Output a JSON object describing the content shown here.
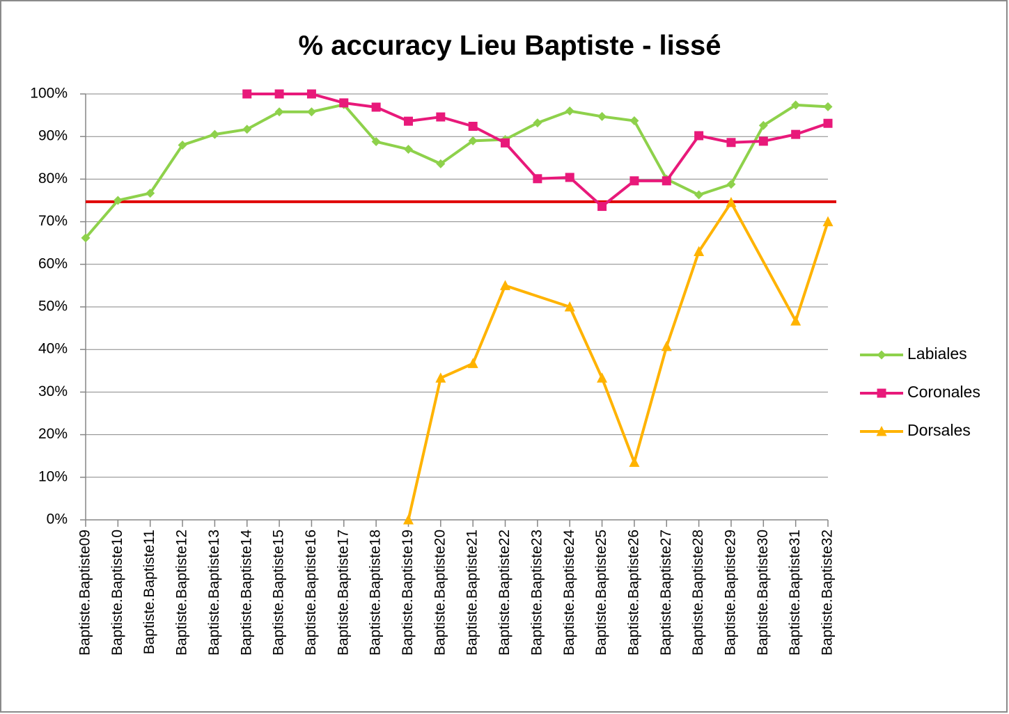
{
  "chart_data": {
    "type": "line",
    "title": "% accuracy  Lieu Baptiste - lissé",
    "categories": [
      "Baptiste.Baptiste09",
      "Baptiste.Baptiste10",
      "Baptiste.Baptiste11",
      "Baptiste.Baptiste12",
      "Baptiste.Baptiste13",
      "Baptiste.Baptiste14",
      "Baptiste.Baptiste15",
      "Baptiste.Baptiste16",
      "Baptiste.Baptiste17",
      "Baptiste.Baptiste18",
      "Baptiste.Baptiste19",
      "Baptiste.Baptiste20",
      "Baptiste.Baptiste21",
      "Baptiste.Baptiste22",
      "Baptiste.Baptiste23",
      "Baptiste.Baptiste24",
      "Baptiste.Baptiste25",
      "Baptiste.Baptiste26",
      "Baptiste.Baptiste27",
      "Baptiste.Baptiste28",
      "Baptiste.Baptiste29",
      "Baptiste.Baptiste30",
      "Baptiste.Baptiste31",
      "Baptiste.Baptiste32"
    ],
    "series": [
      {
        "name": "Labiales",
        "color": "#8ed14b",
        "marker": "diamond",
        "values": [
          66.2,
          75,
          76.7,
          88,
          90.5,
          91.7,
          95.8,
          95.8,
          97.5,
          88.8,
          87,
          83.6,
          89,
          89.3,
          93.2,
          96,
          94.7,
          93.7,
          80,
          76.3,
          78.8,
          92.6,
          97.4,
          97
        ]
      },
      {
        "name": "Coronales",
        "color": "#e8197a",
        "marker": "square",
        "values": [
          null,
          null,
          null,
          null,
          null,
          100,
          100,
          100,
          97.9,
          96.9,
          93.6,
          94.6,
          92.4,
          88.5,
          80.1,
          80.4,
          73.6,
          79.6,
          79.6,
          90.2,
          88.6,
          88.9,
          90.5,
          93.1
        ]
      },
      {
        "name": "Dorsales",
        "color": "#ffb300",
        "marker": "triangle",
        "values": [
          null,
          null,
          null,
          null,
          null,
          null,
          null,
          null,
          null,
          null,
          0,
          33.3,
          36.7,
          55,
          null,
          50,
          33.3,
          13.5,
          40.7,
          63,
          74.5,
          null,
          46.7,
          70
        ]
      }
    ],
    "connect_gaps": true,
    "reference_line": {
      "value": 74.7,
      "color": "#e00000"
    },
    "ylim": [
      0,
      100
    ],
    "yticks": [
      {
        "value": 0,
        "label": "0%"
      },
      {
        "value": 10,
        "label": "10%"
      },
      {
        "value": 20,
        "label": "20%"
      },
      {
        "value": 30,
        "label": "30%"
      },
      {
        "value": 40,
        "label": "40%"
      },
      {
        "value": 50,
        "label": "50%"
      },
      {
        "value": 60,
        "label": "60%"
      },
      {
        "value": 70,
        "label": "70%"
      },
      {
        "value": 80,
        "label": "80%"
      },
      {
        "value": 90,
        "label": "90%"
      },
      {
        "value": 100,
        "label": "100%"
      }
    ],
    "grid": true,
    "legend": "right"
  }
}
